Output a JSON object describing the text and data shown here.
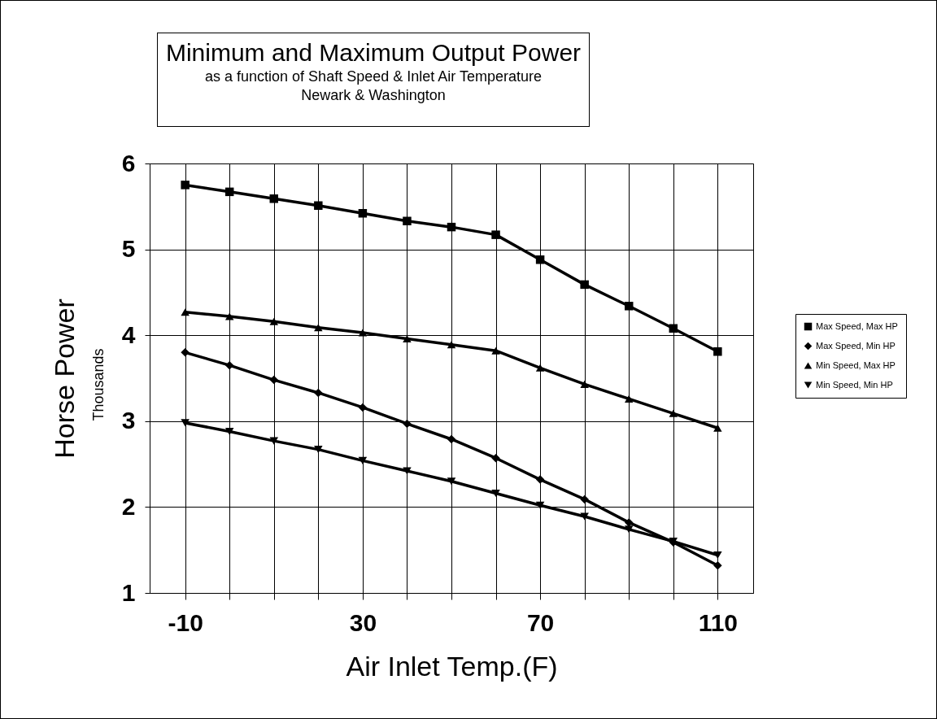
{
  "chart_data": {
    "type": "line",
    "title": "Minimum and Maximum Output Power",
    "subtitle": "as a function of Shaft Speed & Inlet Air Temperature\nNewark & Washington",
    "xlabel": "Air Inlet Temp.(F)",
    "ylabel": "Horse Power",
    "annotations": [
      "Thousands"
    ],
    "x": [
      -10,
      0,
      10,
      20,
      30,
      40,
      50,
      60,
      70,
      80,
      90,
      100,
      110
    ],
    "xlim": [
      -18,
      118
    ],
    "xticks": [
      -10,
      {
        "value": 0,
        "label": null
      },
      {
        "value": 10,
        "label": null
      },
      {
        "value": 20,
        "label": null
      },
      30,
      {
        "value": 40,
        "label": null
      },
      {
        "value": 50,
        "label": null
      },
      {
        "value": 60,
        "label": null
      },
      70,
      {
        "value": 80,
        "label": null
      },
      {
        "value": 90,
        "label": null
      },
      {
        "value": 100,
        "label": null
      },
      110
    ],
    "ylim": [
      1,
      6
    ],
    "yticks": [
      1,
      2,
      3,
      4,
      5,
      6
    ],
    "grid": true,
    "legend": "right",
    "line_style": "solid",
    "series": [
      {
        "name": "Max Speed, Max HP",
        "color": "#000000",
        "marker": "square",
        "values": [
          5.75,
          5.67,
          5.59,
          5.51,
          5.42,
          5.33,
          5.26,
          5.17,
          4.88,
          4.59,
          4.34,
          4.08,
          3.81
        ]
      },
      {
        "name": "Max Speed, Min HP",
        "color": "#000000",
        "marker": "diamond",
        "values": [
          3.8,
          3.65,
          3.48,
          3.33,
          3.16,
          2.97,
          2.79,
          2.57,
          2.32,
          2.09,
          1.82,
          1.59,
          1.32
        ]
      },
      {
        "name": "Min Speed, Max HP",
        "color": "#000000",
        "marker": "triangle",
        "values": [
          4.27,
          4.22,
          4.16,
          4.09,
          4.03,
          3.96,
          3.89,
          3.82,
          3.62,
          3.43,
          3.26,
          3.09,
          2.92
        ]
      },
      {
        "name": "Min Speed, Min HP",
        "color": "#000000",
        "marker": "triangle-down",
        "values": [
          2.98,
          2.88,
          2.77,
          2.67,
          2.54,
          2.42,
          2.3,
          2.16,
          2.02,
          1.89,
          1.74,
          1.6,
          1.44
        ]
      }
    ]
  }
}
